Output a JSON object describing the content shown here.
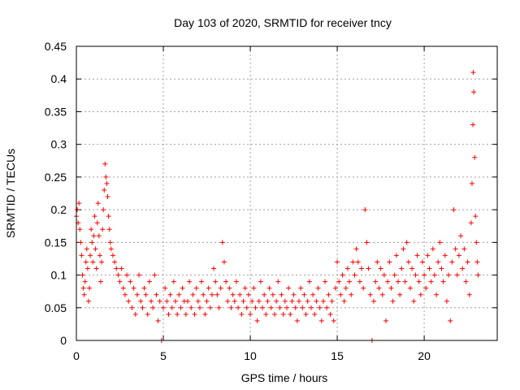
{
  "chart_data": {
    "type": "scatter",
    "title": "Day 103 of 2020, SRMTID for receiver tncy",
    "xlabel": "GPS time / hours",
    "ylabel": "SRMTID / TECUs",
    "xlim": [
      0,
      24.2
    ],
    "ylim": [
      0,
      0.45
    ],
    "xticks": [
      0,
      5,
      10,
      15,
      20
    ],
    "xtick_labels": [
      "0",
      "5",
      "10",
      "15",
      "20"
    ],
    "yticks": [
      0,
      0.05,
      0.1,
      0.15,
      0.2,
      0.25,
      0.3,
      0.35,
      0.4,
      0.45
    ],
    "ytick_labels": [
      "0",
      "0.05",
      "0.1",
      "0.15",
      "0.2",
      "0.25",
      "0.3",
      "0.35",
      "0.4",
      "0.45"
    ],
    "grid": true,
    "marker": "plus",
    "color": "#ff0000",
    "series": [
      {
        "name": "SRMTID",
        "points": [
          [
            0.0,
            0.19
          ],
          [
            0.05,
            0.2
          ],
          [
            0.1,
            0.18
          ],
          [
            0.15,
            0.21
          ],
          [
            0.2,
            0.17
          ],
          [
            0.25,
            0.15
          ],
          [
            0.3,
            0.13
          ],
          [
            0.35,
            0.1
          ],
          [
            0.4,
            0.08
          ],
          [
            0.45,
            0.07
          ],
          [
            0.5,
            0.09
          ],
          [
            0.55,
            0.12
          ],
          [
            0.6,
            0.14
          ],
          [
            0.65,
            0.11
          ],
          [
            0.7,
            0.06
          ],
          [
            0.75,
            0.08
          ],
          [
            0.8,
            0.13
          ],
          [
            0.85,
            0.17
          ],
          [
            0.9,
            0.15
          ],
          [
            0.95,
            0.12
          ],
          [
            1.0,
            0.16
          ],
          [
            1.05,
            0.19
          ],
          [
            1.1,
            0.14
          ],
          [
            1.15,
            0.11
          ],
          [
            1.2,
            0.18
          ],
          [
            1.25,
            0.21
          ],
          [
            1.3,
            0.16
          ],
          [
            1.35,
            0.13
          ],
          [
            1.4,
            0.09
          ],
          [
            1.45,
            0.12
          ],
          [
            1.5,
            0.17
          ],
          [
            1.55,
            0.2
          ],
          [
            1.6,
            0.23
          ],
          [
            1.65,
            0.27
          ],
          [
            1.7,
            0.25
          ],
          [
            1.75,
            0.24
          ],
          [
            1.8,
            0.22
          ],
          [
            1.85,
            0.19
          ],
          [
            1.9,
            0.17
          ],
          [
            1.95,
            0.15
          ],
          [
            2.0,
            0.14
          ],
          [
            2.1,
            0.13
          ],
          [
            2.2,
            0.12
          ],
          [
            2.3,
            0.11
          ],
          [
            2.4,
            0.1
          ],
          [
            2.5,
            0.09
          ],
          [
            2.6,
            0.11
          ],
          [
            2.7,
            0.08
          ],
          [
            2.8,
            0.07
          ],
          [
            2.9,
            0.1
          ],
          [
            3.0,
            0.06
          ],
          [
            3.1,
            0.09
          ],
          [
            3.2,
            0.05
          ],
          [
            3.3,
            0.08
          ],
          [
            3.4,
            0.04
          ],
          [
            3.5,
            0.07
          ],
          [
            3.6,
            0.1
          ],
          [
            3.7,
            0.06
          ],
          [
            3.8,
            0.05
          ],
          [
            3.9,
            0.08
          ],
          [
            4.0,
            0.07
          ],
          [
            4.1,
            0.04
          ],
          [
            4.2,
            0.09
          ],
          [
            4.3,
            0.06
          ],
          [
            4.4,
            0.05
          ],
          [
            4.5,
            0.1
          ],
          [
            4.6,
            0.07
          ],
          [
            4.7,
            0.03
          ],
          [
            4.8,
            0.06
          ],
          [
            4.9,
            0.0
          ],
          [
            5.0,
            0.05
          ],
          [
            5.1,
            0.08
          ],
          [
            5.2,
            0.06
          ],
          [
            5.3,
            0.04
          ],
          [
            5.4,
            0.07
          ],
          [
            5.5,
            0.05
          ],
          [
            5.6,
            0.09
          ],
          [
            5.7,
            0.06
          ],
          [
            5.8,
            0.04
          ],
          [
            5.9,
            0.07
          ],
          [
            6.0,
            0.05
          ],
          [
            6.1,
            0.08
          ],
          [
            6.2,
            0.06
          ],
          [
            6.3,
            0.04
          ],
          [
            6.4,
            0.06
          ],
          [
            6.5,
            0.09
          ],
          [
            6.6,
            0.05
          ],
          [
            6.7,
            0.07
          ],
          [
            6.8,
            0.04
          ],
          [
            6.9,
            0.08
          ],
          [
            7.0,
            0.06
          ],
          [
            7.1,
            0.05
          ],
          [
            7.2,
            0.09
          ],
          [
            7.3,
            0.07
          ],
          [
            7.4,
            0.04
          ],
          [
            7.5,
            0.06
          ],
          [
            7.6,
            0.08
          ],
          [
            7.7,
            0.05
          ],
          [
            7.8,
            0.07
          ],
          [
            7.9,
            0.11
          ],
          [
            8.0,
            0.09
          ],
          [
            8.1,
            0.07
          ],
          [
            8.2,
            0.05
          ],
          [
            8.3,
            0.08
          ],
          [
            8.4,
            0.15
          ],
          [
            8.5,
            0.12
          ],
          [
            8.6,
            0.09
          ],
          [
            8.7,
            0.06
          ],
          [
            8.8,
            0.08
          ],
          [
            8.9,
            0.05
          ],
          [
            9.0,
            0.07
          ],
          [
            9.1,
            0.06
          ],
          [
            9.2,
            0.09
          ],
          [
            9.3,
            0.05
          ],
          [
            9.4,
            0.07
          ],
          [
            9.5,
            0.04
          ],
          [
            9.6,
            0.06
          ],
          [
            9.7,
            0.08
          ],
          [
            9.8,
            0.05
          ],
          [
            9.9,
            0.07
          ],
          [
            10.0,
            0.04
          ],
          [
            10.1,
            0.06
          ],
          [
            10.2,
            0.08
          ],
          [
            10.3,
            0.05
          ],
          [
            10.4,
            0.03
          ],
          [
            10.5,
            0.06
          ],
          [
            10.6,
            0.09
          ],
          [
            10.7,
            0.05
          ],
          [
            10.8,
            0.07
          ],
          [
            10.9,
            0.04
          ],
          [
            11.0,
            0.06
          ],
          [
            11.1,
            0.08
          ],
          [
            11.2,
            0.05
          ],
          [
            11.3,
            0.07
          ],
          [
            11.4,
            0.04
          ],
          [
            11.5,
            0.06
          ],
          [
            11.6,
            0.09
          ],
          [
            11.7,
            0.05
          ],
          [
            11.8,
            0.07
          ],
          [
            11.9,
            0.04
          ],
          [
            12.0,
            0.06
          ],
          [
            12.1,
            0.05
          ],
          [
            12.2,
            0.08
          ],
          [
            12.3,
            0.04
          ],
          [
            12.4,
            0.06
          ],
          [
            12.5,
            0.07
          ],
          [
            12.6,
            0.05
          ],
          [
            12.7,
            0.03
          ],
          [
            12.8,
            0.06
          ],
          [
            12.9,
            0.08
          ],
          [
            13.0,
            0.05
          ],
          [
            13.1,
            0.07
          ],
          [
            13.2,
            0.04
          ],
          [
            13.3,
            0.06
          ],
          [
            13.4,
            0.09
          ],
          [
            13.5,
            0.05
          ],
          [
            13.6,
            0.07
          ],
          [
            13.7,
            0.04
          ],
          [
            13.8,
            0.06
          ],
          [
            13.9,
            0.08
          ],
          [
            14.0,
            0.05
          ],
          [
            14.1,
            0.03
          ],
          [
            14.2,
            0.06
          ],
          [
            14.3,
            0.09
          ],
          [
            14.4,
            0.05
          ],
          [
            14.5,
            0.07
          ],
          [
            14.6,
            0.04
          ],
          [
            14.7,
            0.06
          ],
          [
            14.8,
            0.03
          ],
          [
            14.9,
            0.08
          ],
          [
            15.0,
            0.12
          ],
          [
            15.1,
            0.09
          ],
          [
            15.2,
            0.07
          ],
          [
            15.3,
            0.1
          ],
          [
            15.4,
            0.06
          ],
          [
            15.5,
            0.08
          ],
          [
            15.6,
            0.11
          ],
          [
            15.7,
            0.09
          ],
          [
            15.8,
            0.07
          ],
          [
            15.9,
            0.12
          ],
          [
            16.0,
            0.1
          ],
          [
            16.1,
            0.14
          ],
          [
            16.2,
            0.12
          ],
          [
            16.3,
            0.09
          ],
          [
            16.4,
            0.11
          ],
          [
            16.5,
            0.08
          ],
          [
            16.6,
            0.2
          ],
          [
            16.7,
            0.15
          ],
          [
            16.8,
            0.11
          ],
          [
            16.9,
            0.07
          ],
          [
            17.0,
            0.0
          ],
          [
            17.1,
            0.06
          ],
          [
            17.2,
            0.09
          ],
          [
            17.3,
            0.12
          ],
          [
            17.4,
            0.08
          ],
          [
            17.5,
            0.11
          ],
          [
            17.6,
            0.07
          ],
          [
            17.7,
            0.1
          ],
          [
            17.8,
            0.03
          ],
          [
            17.9,
            0.09
          ],
          [
            18.0,
            0.12
          ],
          [
            18.1,
            0.08
          ],
          [
            18.2,
            0.06
          ],
          [
            18.3,
            0.1
          ],
          [
            18.4,
            0.13
          ],
          [
            18.5,
            0.09
          ],
          [
            18.6,
            0.07
          ],
          [
            18.7,
            0.11
          ],
          [
            18.8,
            0.14
          ],
          [
            18.9,
            0.09
          ],
          [
            19.0,
            0.15
          ],
          [
            19.1,
            0.12
          ],
          [
            19.2,
            0.08
          ],
          [
            19.3,
            0.11
          ],
          [
            19.4,
            0.06
          ],
          [
            19.5,
            0.1
          ],
          [
            19.6,
            0.13
          ],
          [
            19.7,
            0.09
          ],
          [
            19.8,
            0.07
          ],
          [
            19.9,
            0.12
          ],
          [
            20.0,
            0.1
          ],
          [
            20.1,
            0.08
          ],
          [
            20.2,
            0.13
          ],
          [
            20.3,
            0.11
          ],
          [
            20.4,
            0.09
          ],
          [
            20.5,
            0.14
          ],
          [
            20.6,
            0.1
          ],
          [
            20.7,
            0.07
          ],
          [
            20.8,
            0.12
          ],
          [
            20.9,
            0.15
          ],
          [
            21.0,
            0.11
          ],
          [
            21.1,
            0.09
          ],
          [
            21.2,
            0.13
          ],
          [
            21.3,
            0.06
          ],
          [
            21.4,
            0.1
          ],
          [
            21.5,
            0.03
          ],
          [
            21.6,
            0.12
          ],
          [
            21.7,
            0.2
          ],
          [
            21.8,
            0.14
          ],
          [
            21.9,
            0.1
          ],
          [
            22.0,
            0.13
          ],
          [
            22.1,
            0.16
          ],
          [
            22.2,
            0.11
          ],
          [
            22.3,
            0.14
          ],
          [
            22.4,
            0.09
          ],
          [
            22.5,
            0.12
          ],
          [
            22.6,
            0.07
          ],
          [
            22.7,
            0.18
          ],
          [
            22.75,
            0.24
          ],
          [
            22.8,
            0.33
          ],
          [
            22.82,
            0.41
          ],
          [
            22.85,
            0.38
          ],
          [
            22.9,
            0.28
          ],
          [
            22.95,
            0.19
          ],
          [
            23.0,
            0.15
          ],
          [
            23.05,
            0.12
          ],
          [
            23.1,
            0.1
          ]
        ]
      }
    ]
  }
}
